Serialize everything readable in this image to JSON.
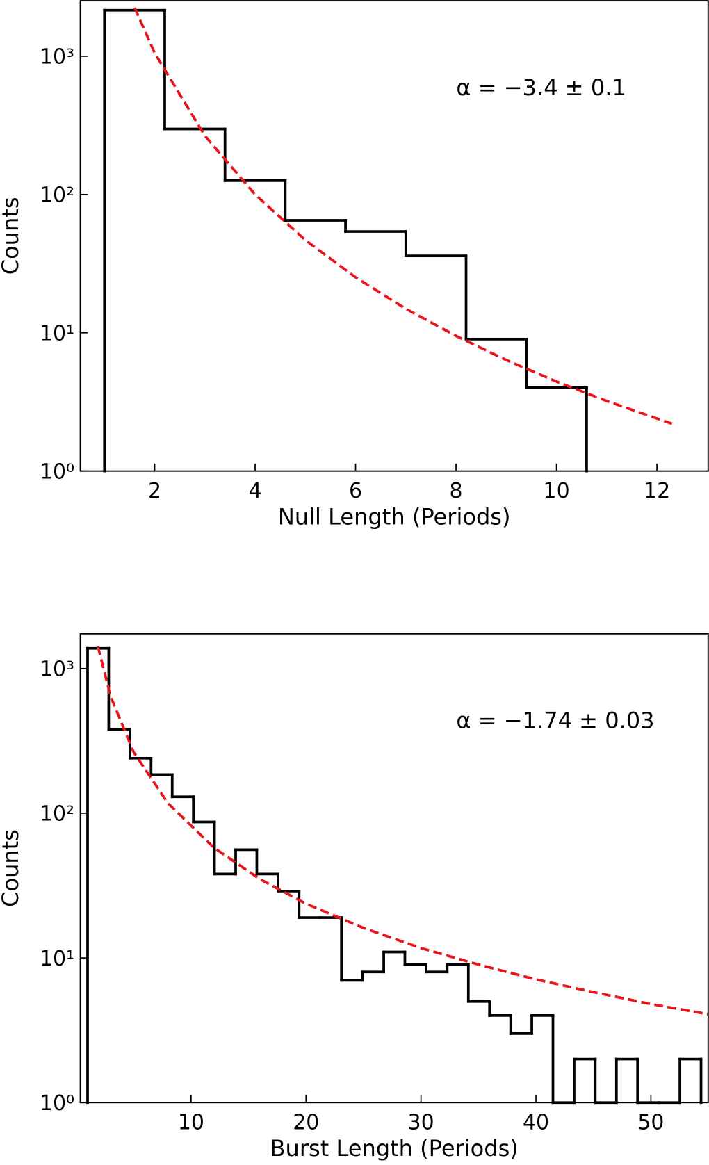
{
  "chart_data": [
    {
      "type": "histogram",
      "xlabel": "Null Length (Periods)",
      "ylabel": "Counts",
      "annotation": "α = −3.4 ± 0.1",
      "bins": [
        1.0,
        2.2,
        3.4,
        4.6,
        5.8,
        7.0,
        8.2,
        9.4,
        10.6
      ],
      "values": [
        2150,
        298,
        126,
        65,
        54,
        36,
        9,
        4
      ],
      "color": "#000000",
      "fit_x": [
        1.6,
        2,
        3,
        4,
        5,
        6,
        7,
        8,
        9,
        10,
        11,
        12.3
      ],
      "fit_values": [
        2250,
        1056,
        266,
        100,
        46.8,
        25.2,
        14.9,
        9.5,
        6.35,
        4.44,
        3.21,
        2.2
      ],
      "fit_color": "#e8161b",
      "log_y": true,
      "xlim": [
        0.52,
        13.02
      ],
      "ylim": [
        1,
        2520
      ],
      "xticks": [
        2,
        4,
        6,
        8,
        10,
        12
      ],
      "yticks": [
        {
          "value": 1,
          "label": "10⁰"
        },
        {
          "value": 10,
          "label": "10¹"
        },
        {
          "value": 100,
          "label": "10²"
        },
        {
          "value": 1000,
          "label": "10³"
        }
      ]
    },
    {
      "type": "histogram",
      "xlabel": "Burst Length (Periods)",
      "ylabel": "Counts",
      "annotation": "α = −1.74 ± 0.03",
      "bins": [
        1,
        2.84,
        4.68,
        6.52,
        8.36,
        10.2,
        12.04,
        13.88,
        15.72,
        17.56,
        19.4,
        21.24,
        23.08,
        24.92,
        26.76,
        28.6,
        30.44,
        32.28,
        34.12,
        35.96,
        37.8,
        39.64,
        41.48,
        43.32,
        45.16,
        47.0,
        48.84,
        50.68,
        52.52,
        54.36
      ],
      "values": [
        1380,
        380,
        240,
        185,
        130,
        87,
        38,
        56,
        38,
        29,
        19,
        19,
        7,
        8,
        11,
        9,
        8,
        9,
        5,
        4,
        3,
        4,
        0,
        2,
        0,
        2,
        0,
        0,
        2
      ],
      "color": "#000000",
      "fit_x": [
        1.9,
        3,
        5,
        8,
        12,
        16,
        20,
        25,
        30,
        35,
        40,
        45,
        50,
        55
      ],
      "fit_values": [
        1423,
        643,
        265,
        117,
        57.7,
        35,
        23.7,
        16.1,
        11.7,
        9.0,
        7.1,
        5.8,
        4.8,
        4.08
      ],
      "fit_color": "#e8161b",
      "log_y": true,
      "xlim": [
        0.37,
        54.98
      ],
      "ylim": [
        1,
        1740
      ],
      "xticks": [
        10,
        20,
        30,
        40,
        50
      ],
      "yticks": [
        {
          "value": 1,
          "label": "10⁰"
        },
        {
          "value": 10,
          "label": "10¹"
        },
        {
          "value": 100,
          "label": "10²"
        },
        {
          "value": 1000,
          "label": "10³"
        }
      ]
    }
  ]
}
